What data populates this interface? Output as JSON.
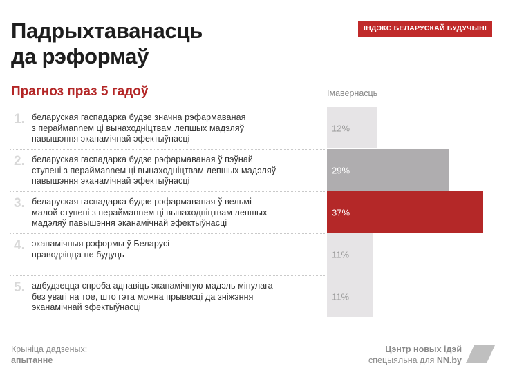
{
  "header": {
    "title_line1": "Падрыхтаванасць",
    "title_line2": "да рэформаў",
    "badge": "ІНДЭКС БЕЛАРУСКАЙ БУДУЧЫНІ"
  },
  "subtitle": "Прагноз праз 5 гадоў",
  "column_header": "Імавернасць",
  "chart_data": {
    "type": "bar",
    "orientation": "horizontal",
    "title": "Прагноз праз 5 гадоў",
    "ylabel": "Імавернасць",
    "categories": [
      "1.",
      "2.",
      "3.",
      "4.",
      "5."
    ],
    "descriptions": [
      [
        "беларуская гаспадарка будзе значна рэфармаваная",
        "з пераймannем ці вынаходніцтвам лепшых мадэляў",
        "павышэння эканамічнай эфектыўнасці"
      ],
      [
        "беларуская гаспадарка будзе рэфармаваная ў пэўнай",
        "ступені з пераймannем ці вынаходніцтвам лепшых мадэляў",
        "павышэння эканамічнай эфектыўнасці"
      ],
      [
        "беларуская гаспадарка будзе рэфармаваная ў вельмі",
        "малой ступені з пераймannем ці вынаходніцтвам лепшых",
        "мадэляў павышэння эканамічнай эфектыўнасці"
      ],
      [
        "эканамічныя рэформы ў Беларусі",
        "праводзіцца не будуць"
      ],
      [
        "адбудзецца спроба аднавіць эканамічную мадэль мінулага",
        "без увагі на тое, што гэта можна прывесці да зніжэння",
        "эканамічнай эфектыўнасці"
      ]
    ],
    "values": [
      12,
      29,
      37,
      11,
      11
    ],
    "value_labels": [
      "12%",
      "29%",
      "37%",
      "11%",
      "11%"
    ],
    "unit": "%",
    "xlim": [
      0,
      37
    ],
    "colors": [
      "#e6e4e6",
      "#afadaf",
      "#b42828",
      "#e6e4e6",
      "#e6e4e6"
    ],
    "label_colors": [
      "#9a9a9a",
      "#ffffff",
      "#ffffff",
      "#9a9a9a",
      "#9a9a9a"
    ]
  },
  "footer": {
    "source_line1": "Крыніца дадзеных:",
    "source_line2": "апытанне",
    "credit_line1": "Цэнтр новых ідэй",
    "credit_prefix": "спецыяльна для ",
    "credit_site": "NN.by",
    "logo_icon": "slanted-parallelogram-logo-icon"
  }
}
